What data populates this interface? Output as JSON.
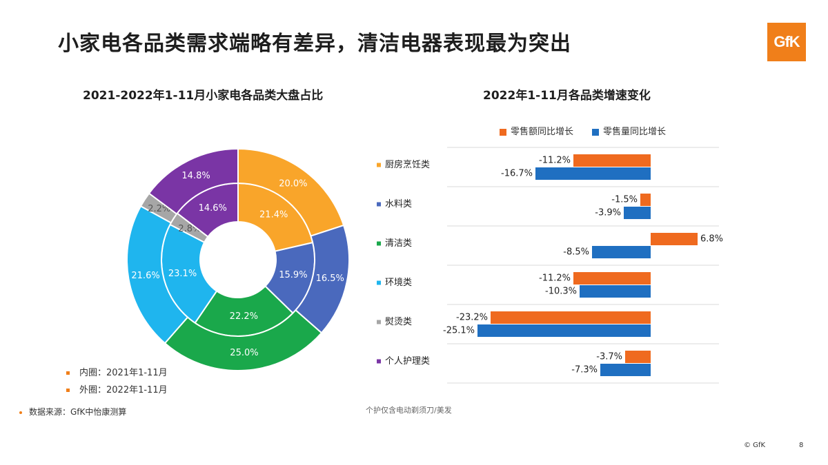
{
  "page": {
    "title": "小家电各品类需求端略有差异，清洁电器表现最为突出",
    "logo_text": "GfK",
    "source_note": "数据来源：GfK中怡康测算",
    "footnote": "个护仅含电动剃须刀/美发",
    "copyright": "© GfK",
    "page_number": "8"
  },
  "chart_data": [
    {
      "type": "pie",
      "title": "2021-2022年1-11月小家电各品类大盘占比",
      "categories": [
        "厨房烹饪类",
        "水料类",
        "清洁类",
        "环境类",
        "熨烫类",
        "个人护理类"
      ],
      "colors": [
        "#f9a52a",
        "#4a69bd",
        "#1aa84b",
        "#1fb5ee",
        "#a6a6a6",
        "#7a35a5"
      ],
      "series": [
        {
          "name": "内圈：2021年1-11月",
          "values": [
            21.4,
            15.9,
            22.2,
            23.1,
            2.8,
            14.6
          ]
        },
        {
          "name": "外圈：2022年1-11月",
          "values": [
            20.0,
            16.5,
            25.0,
            21.6,
            2.2,
            14.8
          ]
        }
      ],
      "labels_inner": [
        "21.4%",
        "15.9%",
        "22.2%",
        "23.1%",
        "2.8%",
        "14.6%"
      ],
      "labels_outer": [
        "20.0%",
        "16.5%",
        "25.0%",
        "21.6%",
        "2.2%",
        "14.8%"
      ],
      "legend": [
        "内圈：2021年1-11月",
        "外圈：2022年1-11月"
      ]
    },
    {
      "type": "bar",
      "orientation": "horizontal",
      "title": "2022年1-11月各品类增速变化",
      "categories": [
        "厨房烹饪类",
        "水料类",
        "清洁类",
        "环境类",
        "熨烫类",
        "个人护理类"
      ],
      "category_colors": [
        "#f9a52a",
        "#4a69bd",
        "#1aa84b",
        "#1fb5ee",
        "#a6a6a6",
        "#7a35a5"
      ],
      "series": [
        {
          "name": "零售额同比增长",
          "color": "#ef6a1f",
          "values": [
            -11.2,
            -1.5,
            6.8,
            -11.2,
            -23.2,
            -3.7
          ],
          "labels": [
            "-11.2%",
            "-1.5%",
            "6.8%",
            "-11.2%",
            "-23.2%",
            "-3.7%"
          ]
        },
        {
          "name": "零售量同比增长",
          "color": "#1f6fc1",
          "values": [
            -16.7,
            -3.9,
            -8.5,
            -10.3,
            -25.1,
            -7.3
          ],
          "labels": [
            "-16.7%",
            "-3.9%",
            "-8.5%",
            "-10.3%",
            "-25.1%",
            "-7.3%"
          ]
        }
      ],
      "legend_position": "top"
    }
  ]
}
